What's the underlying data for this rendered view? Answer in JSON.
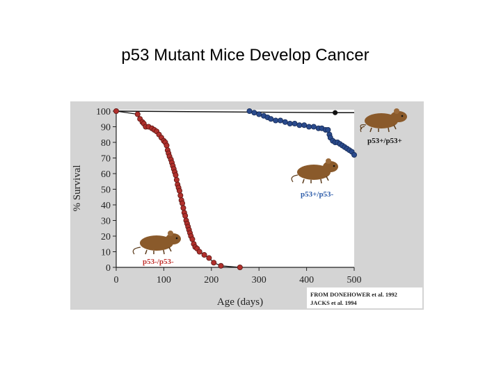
{
  "slide": {
    "title": "p53 Mutant Mice Develop Cancer"
  },
  "chart_data": {
    "type": "line",
    "title": "",
    "xlabel": "Age (days)",
    "ylabel": "% Survival",
    "xlim": [
      0,
      500
    ],
    "ylim": [
      0,
      100
    ],
    "xticks": [
      0,
      100,
      200,
      300,
      400,
      500
    ],
    "yticks": [
      0,
      10,
      20,
      30,
      40,
      50,
      60,
      70,
      80,
      90,
      100
    ],
    "colors": {
      "panel": "#d4d4d4",
      "plot": "#ffffff",
      "red": "#b0302c",
      "blue": "#2a4a8c",
      "black": "#111111",
      "mouse": "#8a5a2b"
    },
    "series": [
      {
        "name": "p53+/p53+",
        "x": [
          0,
          460,
          500
        ],
        "y": [
          100,
          99,
          99
        ],
        "markers": [
          [
            460,
            99
          ]
        ],
        "label_color": "#111111"
      },
      {
        "name": "p53+/p53-",
        "x": [
          280,
          290,
          300,
          310,
          318,
          325,
          335,
          345,
          355,
          365,
          375,
          385,
          395,
          405,
          415,
          425,
          432,
          440,
          445,
          448,
          450,
          455,
          460,
          465,
          470,
          475,
          480,
          485,
          490,
          495,
          500
        ],
        "y": [
          100,
          99,
          98,
          97,
          96,
          95,
          94,
          94,
          93,
          92,
          92,
          91,
          91,
          90,
          90,
          89,
          89,
          88,
          88,
          85,
          83,
          81,
          80,
          80,
          79,
          78,
          77,
          76,
          75,
          74,
          72
        ],
        "label_color": "#2a5aa8"
      },
      {
        "name": "p53-/p53-",
        "x": [
          0,
          45,
          50,
          55,
          58,
          62,
          68,
          75,
          80,
          85,
          90,
          95,
          100,
          103,
          106,
          108,
          110,
          112,
          115,
          117,
          119,
          121,
          123,
          125,
          127,
          129,
          131,
          133,
          135,
          137,
          139,
          141,
          143,
          145,
          147,
          149,
          151,
          153,
          155,
          157,
          160,
          163,
          166,
          170,
          175,
          185,
          195,
          205,
          220,
          260
        ],
        "y": [
          100,
          98,
          95,
          93,
          92,
          90,
          90,
          89,
          88,
          87,
          85,
          83,
          81,
          80,
          78,
          75,
          73,
          71,
          69,
          67,
          65,
          63,
          61,
          59,
          56,
          53,
          51,
          49,
          46,
          43,
          41,
          38,
          35,
          33,
          30,
          28,
          26,
          24,
          22,
          20,
          18,
          15,
          13,
          12,
          10,
          8,
          6,
          3,
          1,
          0
        ],
        "label_color": "#c0322e"
      }
    ],
    "source_note": {
      "line1": "FROM DONEHOWER et al. 1992",
      "line2": "JACKS  et al. 1994"
    }
  }
}
